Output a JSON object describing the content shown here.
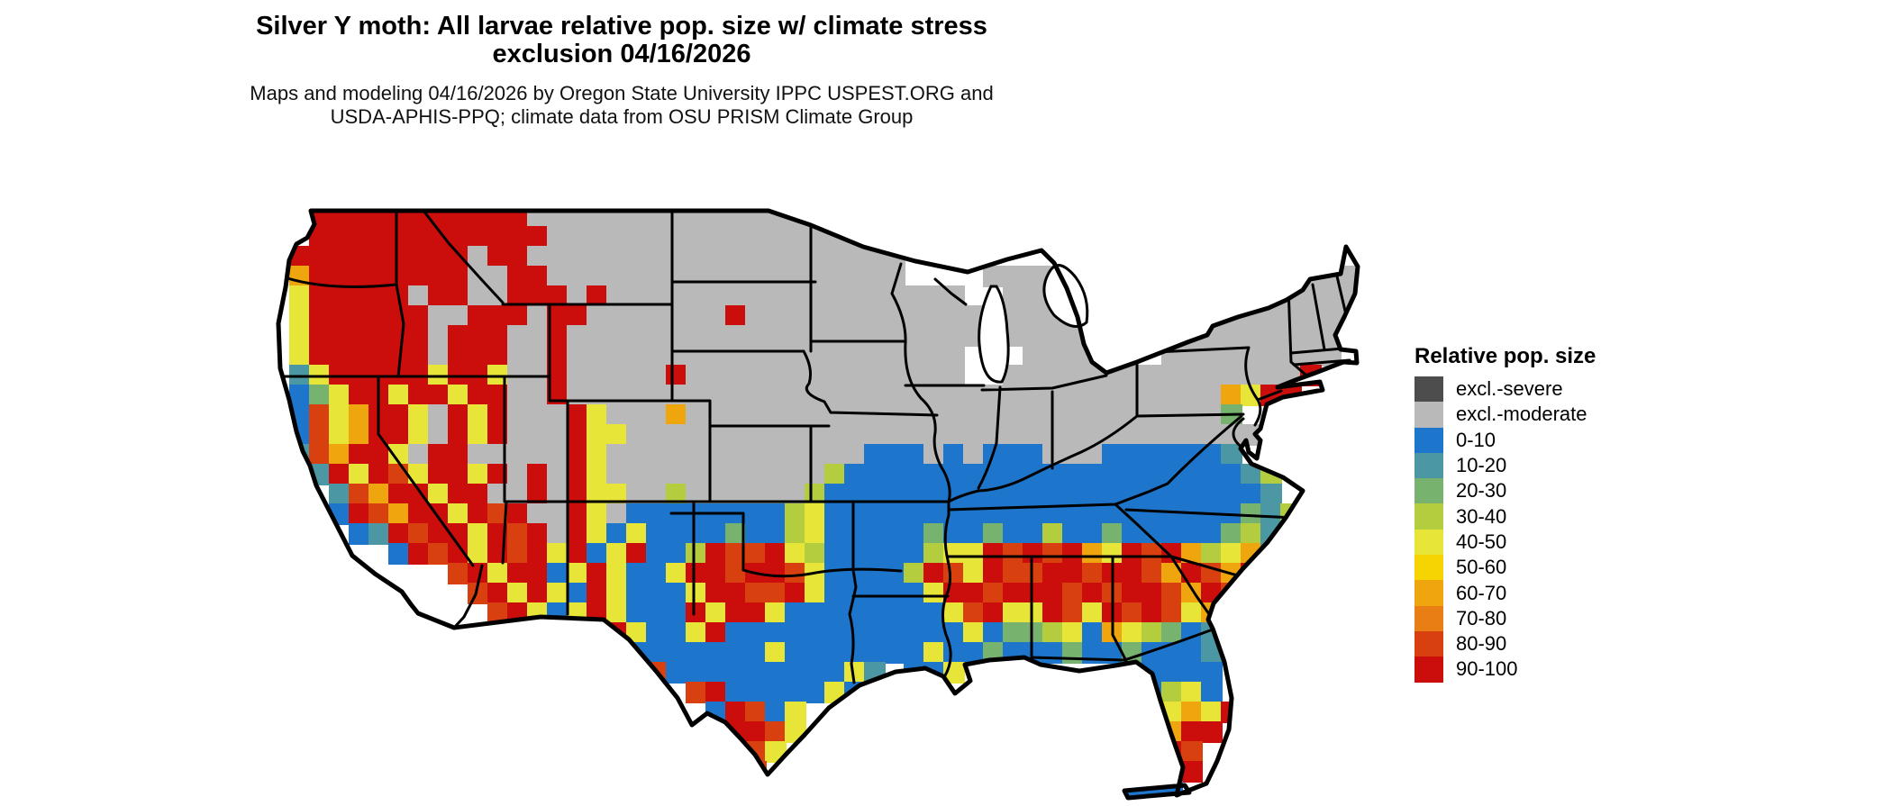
{
  "header": {
    "title_line1": "Silver Y moth: All larvae relative pop. size w/ climate stress",
    "title_line2": "exclusion 04/16/2026",
    "subtitle_line1": "Maps and modeling 04/16/2026 by Oregon State University IPPC USPEST.ORG and",
    "subtitle_line2": "USDA-APHIS-PPQ; climate data from OSU PRISM Climate Group"
  },
  "legend": {
    "title": "Relative pop. size",
    "items": [
      {
        "label": "excl.-severe",
        "color": "#4d4d4d"
      },
      {
        "label": "excl.-moderate",
        "color": "#b9b9b9"
      },
      {
        "label": "0-10",
        "color": "#1d76cb"
      },
      {
        "label": "10-20",
        "color": "#4b97a4"
      },
      {
        "label": "20-30",
        "color": "#77b36f"
      },
      {
        "label": "30-40",
        "color": "#b4cd3e"
      },
      {
        "label": "40-50",
        "color": "#e8e539"
      },
      {
        "label": "50-60",
        "color": "#f6d403"
      },
      {
        "label": "60-70",
        "color": "#efa50e"
      },
      {
        "label": "70-80",
        "color": "#e87e14"
      },
      {
        "label": "80-90",
        "color": "#d84010"
      },
      {
        "label": "90-100",
        "color": "#cb0d0c"
      }
    ]
  },
  "map": {
    "cell": 22,
    "palette": {
      "S": "#4d4d4d",
      "M": "#b9b9b9",
      "B": "#1d76cb",
      "T": "#4b97a4",
      "G": "#77b36f",
      "L": "#b4cd3e",
      "Y": "#e8e539",
      "D": "#f6d403",
      "O": "#efa50e",
      "P": "#e87e14",
      "R": "#d84010",
      "K": "#cb0d0c"
    },
    "grid": [
      "2.11K19M23.",
      "2.12K18M23.",
      "1.9K1M2K19M21.1M1.",
      "1.1O8K2M2K18M4.5M11.3M",
      "1.1Y5K1M2K2M3K1M1K18M2.4M9.5M",
      "1.1Y6K2M3K1M2K7M1K12M1.4M4.10M",
      "1.1Y6K1M3K2M1K21M1.5M3.10M",
      "1.1Y6K1M3K2M1K20M3.4M3.9M1.",
      "1.1T1Y5K1Y2K1Y2M1K5M1K14M2.15M1K2.",
      "1.1B1G1Y2K1Y2K1Y2K2M1K33M1O1Y2K3.",
      "1.1B1R1Y1O2K1Y1M1K1Y1K3M1K1Y3M1O27M1G6.",
      "1.1B1R1Y1O2K1Y1M1K1Y1K3M1K2Y33M4.",
      "1.1T1R1O2K1Y1M2K5M1K1Y13M3B1M1B1M3B3M6B1T6.",
      "2.1T1K1Y1K1R1Y2K1Y1K1M1K1M1K1Y11M1L20B1T1L4.",
      "3.1T1R1O2K1Y2K2M1K1M1K2Y2M1L6M1L22B1T4.",
      "3.1B1K1R1O2K1Y1K1R1K2M1K1Y1M8B1L1Y21B1G1T1L3.",
      "4.1B1T1K1R2K1Y1K1R1K1M1K1Y1B1Y4B1G2B1L1Y5B1G2B1G2B1L2B1G5B1G1L1T1L3.",
      "6.1B1K1R1K1Y1K1R1K1Y1K1B1Y1K2B1L1K2R1K1Y1L5B1L2Y1K1R1K1R1K1O1Y1K1R1K1O1L1Y1O1T4.",
      "9.1R1K1Y2K1B1Y1K1Y2B1Y2K1R2K1R1Y4B1L1K1R1Y1K2R2K1R2K1R1O1K1R1O1K5.",
      "10.1R1K1Y1K1Y1B1K1Y3B1Y2K2R1K1Y5B1Y2K1R3K1R1K1R2K1R1O1K1R1O5.",
      "11.1R1K1Y1B1Y1K1Y3B1K1Y2K1Y8B1Y1R1K2Y1K1R1Y1K1R1K1R1Y1O1R6.",
      "12.1R1K2B1Y1K1Y2B1Y1K12B1Y1B2G1L1Y1B1O1Y1L1G1B1T7.",
      "15.1Y1K8B1Y7B1Y2B1G3B1G2B1G3B1T7.",
      "18.1K1R9B1Y1T1.2B1Y9.4B7.",
      "21.1R1K5B1Y1B14.1B1L1Y1B7.",
      "22.1B1K1R1B1Y18.1Y1O1Y1K6.",
      "23.2K1R1Y18.1O2K7.",
      "23.1K1R1Y19.1K1R8.",
      "23.1K1R21.1K8.",
      "43.3B9."
    ]
  }
}
